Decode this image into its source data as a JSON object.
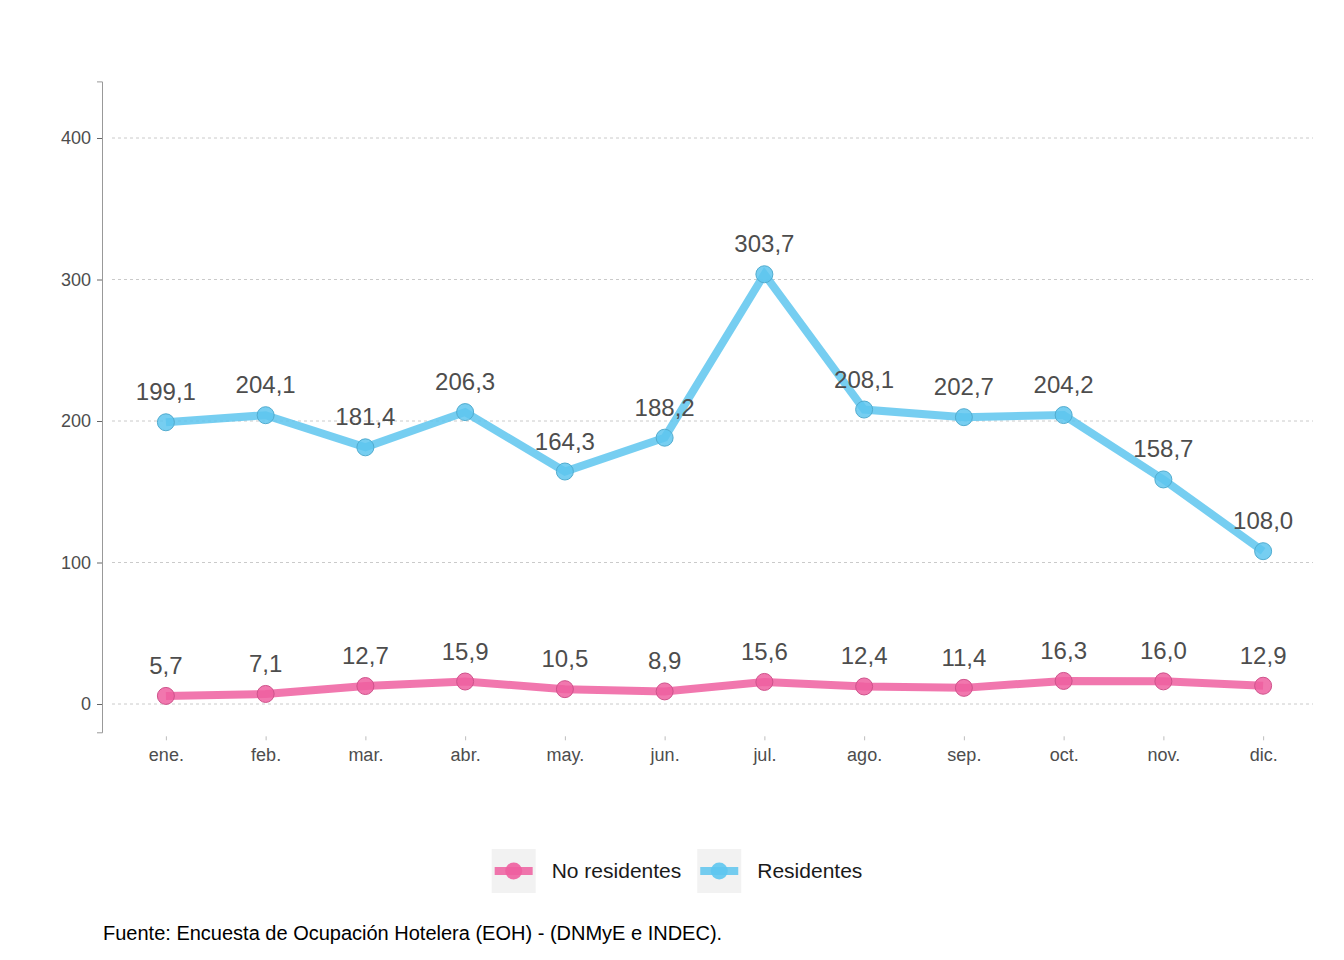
{
  "chart_data": {
    "type": "line",
    "caption": "Fuente: Encuesta de Ocupación Hotelera (EOH) - (DNMyE e INDEC).",
    "categories": [
      "ene.",
      "feb.",
      "mar.",
      "abr.",
      "may.",
      "jun.",
      "jul.",
      "ago.",
      "sep.",
      "oct.",
      "nov.",
      "dic."
    ],
    "series": [
      {
        "name": "No residentes",
        "color": "#ee5fa0",
        "marker": "circle",
        "line_style": "solid",
        "values": [
          5.7,
          7.1,
          12.7,
          15.9,
          10.5,
          8.9,
          15.6,
          12.4,
          11.4,
          16.3,
          16.0,
          12.9
        ],
        "value_labels": [
          "5,7",
          "7,1",
          "12,7",
          "15,9",
          "10,5",
          "8,9",
          "15,6",
          "12,4",
          "11,4",
          "16,3",
          "16,0",
          "12,9"
        ]
      },
      {
        "name": "Residentes",
        "color": "#5ec6ef",
        "marker": "circle",
        "line_style": "solid",
        "values": [
          199.1,
          204.1,
          181.4,
          206.3,
          164.3,
          188.2,
          303.7,
          208.1,
          202.7,
          204.2,
          158.7,
          108.0
        ],
        "value_labels": [
          "199,1",
          "204,1",
          "181,4",
          "206,3",
          "164,3",
          "188,2",
          "303,7",
          "208,1",
          "202,7",
          "204,2",
          "158,7",
          "108,0"
        ]
      }
    ],
    "ylim": [
      -20,
      440
    ],
    "yticks": [
      0,
      100,
      200,
      300,
      400
    ],
    "grid": true,
    "legend": "bottom",
    "data_labels": true
  }
}
